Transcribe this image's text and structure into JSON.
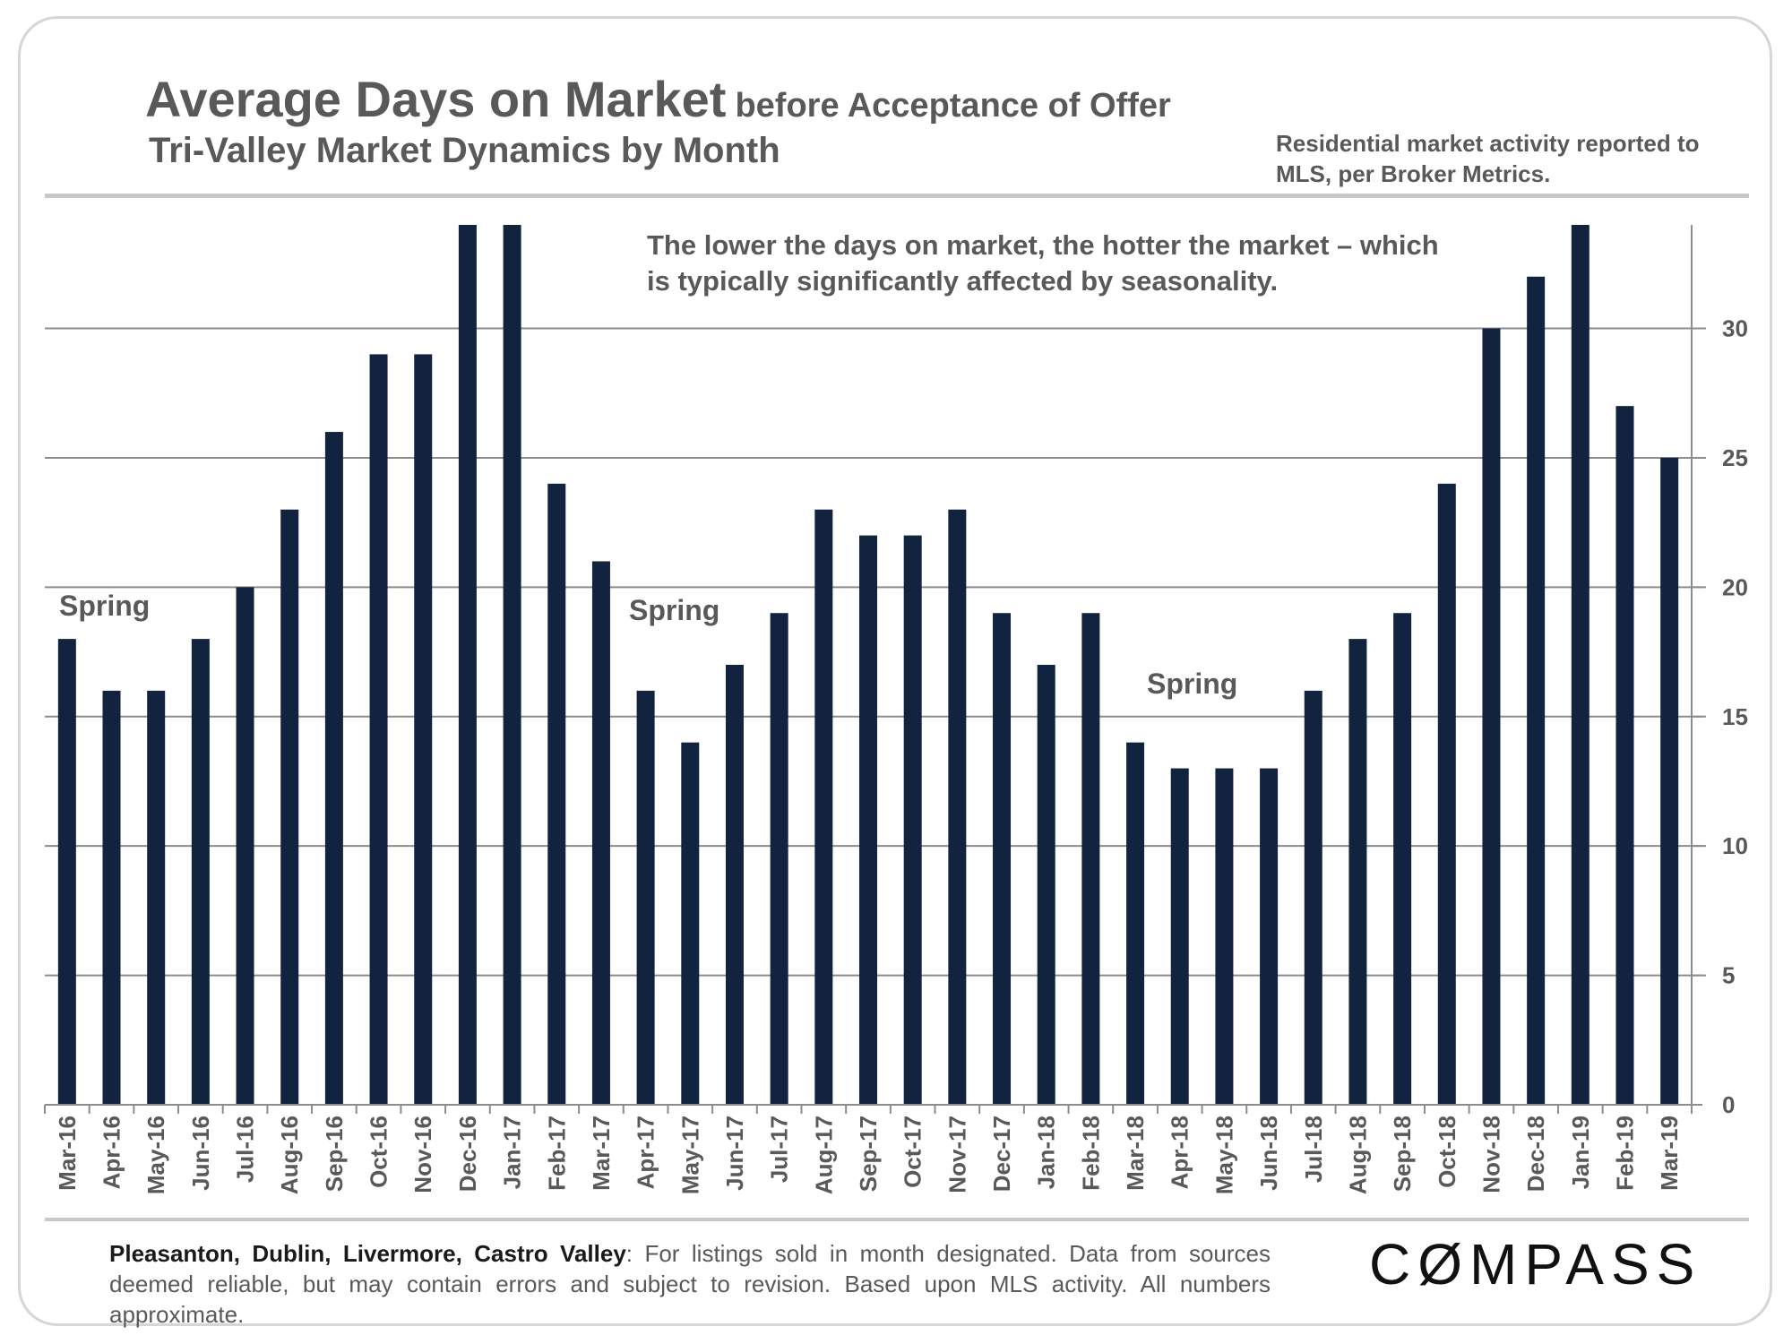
{
  "header": {
    "title_main": "Average Days on Market",
    "title_suffix": "before Acceptance of Offer",
    "subtitle": "Tri-Valley  Market Dynamics by Month",
    "source_note": "Residential market activity reported to MLS, per Broker Metrics."
  },
  "annotation": "The lower the days on market, the hotter the market – which is typically significantly affected by seasonality.",
  "spring_labels": [
    "Spring",
    "Spring",
    "Spring"
  ],
  "footer": {
    "areas": "Pleasanton, Dublin, Livermore, Castro Valley",
    "note": ": For listings sold in month designated. Data from sources deemed reliable, but may contain errors and subject to revision. Based upon MLS activity. All numbers approximate."
  },
  "logo": {
    "prefix": "C",
    "symbol": "Ø",
    "suffix": "MPASS"
  },
  "chart_data": {
    "type": "bar",
    "categories": [
      "Mar-16",
      "Apr-16",
      "May-16",
      "Jun-16",
      "Jul-16",
      "Aug-16",
      "Sep-16",
      "Oct-16",
      "Nov-16",
      "Dec-16",
      "Jan-17",
      "Feb-17",
      "Mar-17",
      "Apr-17",
      "May-17",
      "Jun-17",
      "Jul-17",
      "Aug-17",
      "Sep-17",
      "Oct-17",
      "Nov-17",
      "Dec-17",
      "Jan-18",
      "Feb-18",
      "Mar-18",
      "Apr-18",
      "May-18",
      "Jun-18",
      "Jul-18",
      "Aug-18",
      "Sep-18",
      "Oct-18",
      "Nov-18",
      "Dec-18",
      "Jan-19",
      "Feb-19",
      "Mar-19"
    ],
    "values": [
      18,
      16,
      16,
      18,
      20,
      23,
      26,
      29,
      29,
      34,
      34,
      24,
      21,
      16,
      14,
      17,
      19,
      23,
      22,
      22,
      23,
      19,
      17,
      19,
      14,
      13,
      13,
      13,
      16,
      18,
      19,
      24,
      30,
      32,
      34,
      27,
      25
    ],
    "ylim": [
      0,
      34
    ],
    "yticks": [
      0,
      5,
      10,
      15,
      20,
      25,
      30
    ],
    "y_axis_side": "right",
    "grid": true,
    "bar_color": "#12233f"
  }
}
